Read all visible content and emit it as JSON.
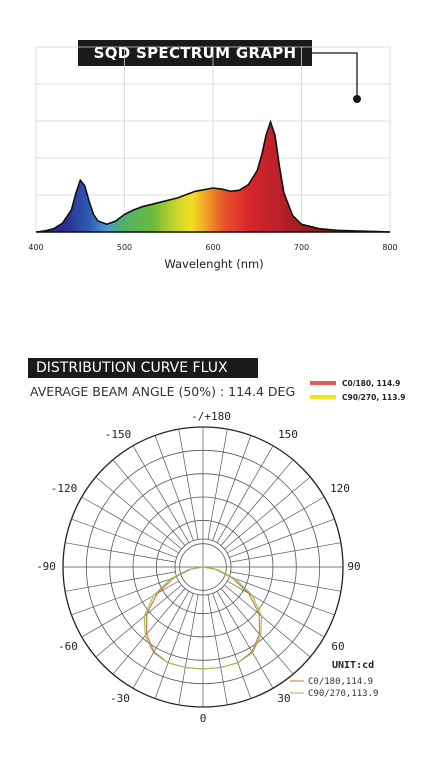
{
  "chart_data": [
    {
      "type": "area",
      "title": "SQD SPECTRUM GRAPH",
      "xlabel": "Wavelenght (nm)",
      "ylabel": "",
      "xlim": [
        400,
        800
      ],
      "ylim": [
        0,
        1
      ],
      "x_ticks": [
        "400",
        "500",
        "600",
        "700",
        "800"
      ],
      "grid": true,
      "series": [
        {
          "x": [
            400,
            410,
            420,
            430,
            440,
            445,
            450,
            455,
            460,
            465,
            470,
            480,
            490,
            500,
            510,
            520,
            540,
            560,
            580,
            600,
            610,
            620,
            630,
            640,
            650,
            655,
            660,
            665,
            670,
            675,
            680,
            690,
            700,
            720,
            740,
            760,
            780,
            800
          ],
          "values": [
            0.0,
            0.01,
            0.03,
            0.08,
            0.2,
            0.35,
            0.47,
            0.42,
            0.28,
            0.16,
            0.1,
            0.07,
            0.1,
            0.16,
            0.2,
            0.23,
            0.27,
            0.31,
            0.37,
            0.4,
            0.39,
            0.37,
            0.38,
            0.43,
            0.56,
            0.7,
            0.88,
            1.0,
            0.88,
            0.6,
            0.36,
            0.15,
            0.07,
            0.03,
            0.015,
            0.01,
            0.005,
            0.0
          ]
        }
      ]
    },
    {
      "type": "line",
      "subtype": "polar",
      "title": "DISTRIBUTION CURVE FLUX",
      "subtitle": "AVERAGE BEAM ANGLE  (50%) : 114.4 DEG",
      "unit_label": "UNIT:cd",
      "angle_labels": [
        "-/+180",
        "-150",
        "150",
        "-120",
        "120",
        "-90",
        "90",
        "-60",
        "60",
        "-30",
        "30",
        "0"
      ],
      "legend_top": [
        {
          "name": "C0/180, 114.9",
          "color": "#e8575a"
        },
        {
          "name": "C90/270, 113.9",
          "color": "#f2e21a"
        }
      ],
      "legend_bottom": [
        {
          "name": "C0/180,114.9",
          "color": "#d96a4a"
        },
        {
          "name": "C90/270,113.9",
          "color": "#8fc24a"
        }
      ],
      "series": [
        {
          "name": "C0/180,114.9",
          "color": "#d96a4a",
          "angles": [
            -90,
            -80,
            -70,
            -60,
            -50,
            -40,
            -30,
            -20,
            -10,
            0,
            10,
            20,
            30,
            40,
            50,
            60,
            70,
            80,
            90
          ],
          "values": [
            0.0,
            0.12,
            0.3,
            0.52,
            0.72,
            0.86,
            0.96,
            1.0,
            1.0,
            1.0,
            1.0,
            1.0,
            0.96,
            0.86,
            0.72,
            0.52,
            0.3,
            0.12,
            0.0
          ]
        },
        {
          "name": "C90/270,113.9",
          "color": "#8fc24a",
          "angles": [
            -90,
            -80,
            -70,
            -60,
            -50,
            -40,
            -30,
            -20,
            -10,
            0,
            10,
            20,
            30,
            40,
            50,
            60,
            70,
            80,
            90
          ],
          "values": [
            0.0,
            0.14,
            0.34,
            0.56,
            0.75,
            0.88,
            0.97,
            1.0,
            1.0,
            1.0,
            1.0,
            1.0,
            0.97,
            0.88,
            0.75,
            0.56,
            0.34,
            0.14,
            0.0
          ]
        }
      ]
    }
  ]
}
